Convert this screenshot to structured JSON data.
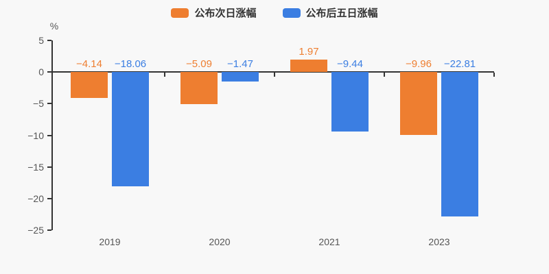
{
  "chart": {
    "background": "#f8f8f8",
    "axis_color": "#333333",
    "tick_label_color": "#555555"
  },
  "chart_data": {
    "type": "bar",
    "title": "",
    "unit_label": "%",
    "categories": [
      "2019",
      "2020",
      "2021",
      "2023"
    ],
    "series": [
      {
        "name": "公布次日涨幅",
        "color": "#ee7e30",
        "values": [
          -4.14,
          -5.09,
          1.97,
          -9.96
        ],
        "labels": [
          "−4.14",
          "−5.09",
          "1.97",
          "−9.96"
        ]
      },
      {
        "name": "公布后五日涨幅",
        "color": "#3b7ee2",
        "values": [
          -18.06,
          -1.47,
          -9.44,
          -22.81
        ],
        "labels": [
          "−18.06",
          "−1.47",
          "−9.44",
          "−22.81"
        ]
      }
    ],
    "ylim": [
      -25,
      5
    ],
    "yticks": [
      5,
      0,
      -5,
      -10,
      -15,
      -20,
      -25
    ],
    "grid": false,
    "legend_position": "top-center",
    "value_label_position": "above"
  }
}
